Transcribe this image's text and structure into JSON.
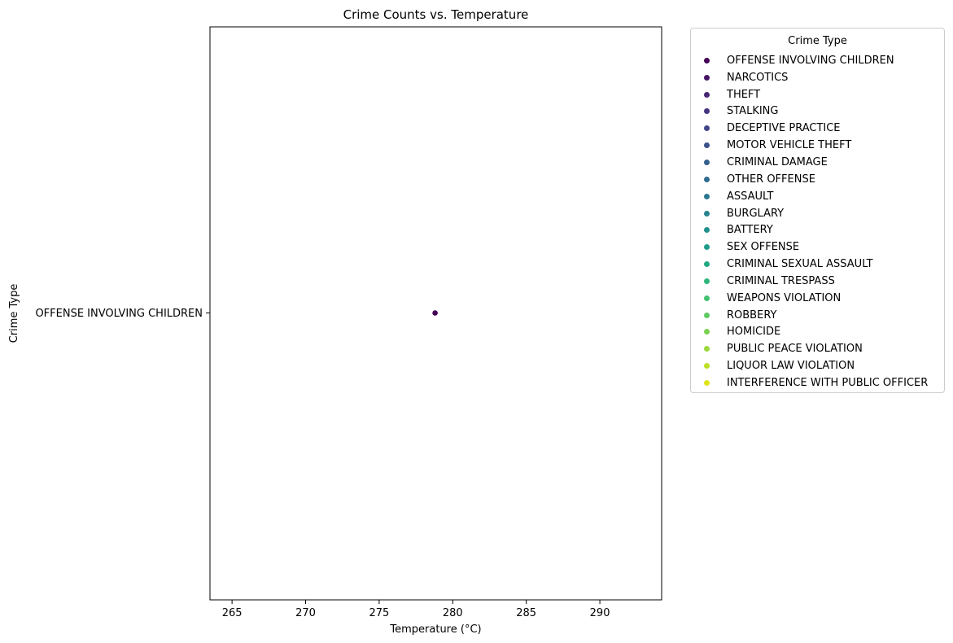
{
  "chart_data": {
    "type": "scatter",
    "title": "Crime Counts vs. Temperature",
    "xlabel": "Temperature (°C)",
    "ylabel": "Crime Type",
    "xlim": [
      263.5,
      294.2
    ],
    "xticks": [
      265,
      270,
      275,
      280,
      285,
      290
    ],
    "ycategories": [
      "OFFENSE INVOLVING CHILDREN"
    ],
    "grid": false,
    "legend_placement": "outside upper right",
    "points": [
      {
        "x": 278.8,
        "y": "OFFENSE INVOLVING CHILDREN",
        "series": "OFFENSE INVOLVING CHILDREN"
      }
    ],
    "legend": {
      "title": "Crime Type",
      "entries": [
        {
          "name": "OFFENSE INVOLVING CHILDREN",
          "color": "#440154"
        },
        {
          "name": "NARCOTICS",
          "color": "#471365"
        },
        {
          "name": "THEFT",
          "color": "#482475"
        },
        {
          "name": "STALKING",
          "color": "#463480"
        },
        {
          "name": "DECEPTIVE PRACTICE",
          "color": "#414487"
        },
        {
          "name": "MOTOR VEHICLE THEFT",
          "color": "#3b528b"
        },
        {
          "name": "CRIMINAL DAMAGE",
          "color": "#355f8d"
        },
        {
          "name": "OTHER OFFENSE",
          "color": "#2f6c8e"
        },
        {
          "name": "ASSAULT",
          "color": "#2a788e"
        },
        {
          "name": "BURGLARY",
          "color": "#25848e"
        },
        {
          "name": "BATTERY",
          "color": "#21918c"
        },
        {
          "name": "SEX OFFENSE",
          "color": "#1e9c89"
        },
        {
          "name": "CRIMINAL SEXUAL ASSAULT",
          "color": "#22a884"
        },
        {
          "name": "CRIMINAL TRESPASS",
          "color": "#2fb47c"
        },
        {
          "name": "WEAPONS VIOLATION",
          "color": "#44bf70"
        },
        {
          "name": "ROBBERY",
          "color": "#5ec962"
        },
        {
          "name": "HOMICIDE",
          "color": "#7ad151"
        },
        {
          "name": "PUBLIC PEACE VIOLATION",
          "color": "#9bd93c"
        },
        {
          "name": "LIQUOR LAW VIOLATION",
          "color": "#bddf26"
        },
        {
          "name": "INTERFERENCE WITH PUBLIC OFFICER",
          "color": "#dfe318"
        }
      ]
    }
  }
}
